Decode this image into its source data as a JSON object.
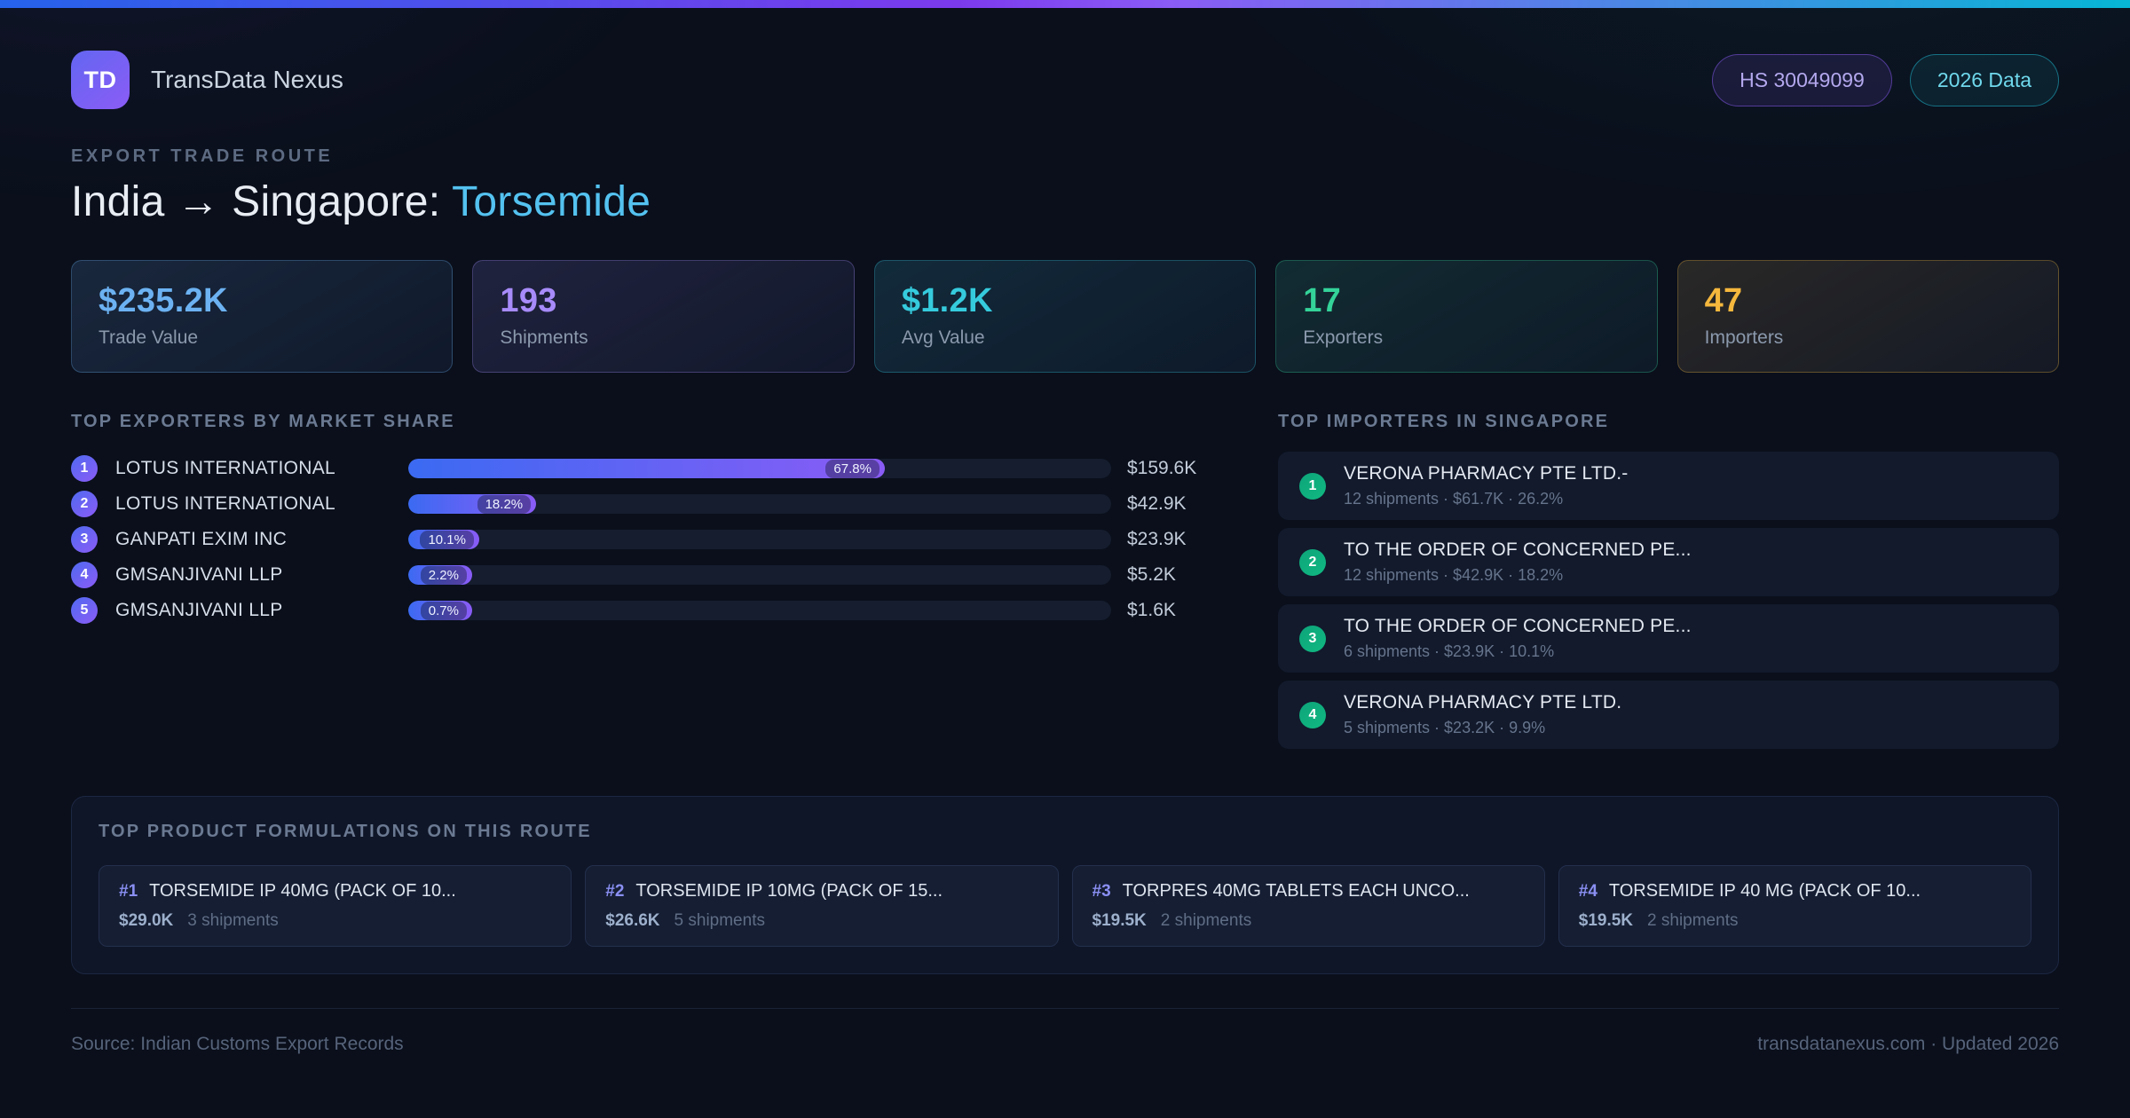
{
  "header": {
    "logo_text": "TD",
    "app_name": "TransData Nexus",
    "hs_badge": "HS 30049099",
    "year_badge": "2026 Data"
  },
  "hero": {
    "eyebrow": "EXPORT TRADE ROUTE",
    "title_route": "India → Singapore: ",
    "title_product": "Torsemide"
  },
  "stats": [
    {
      "value": "$235.2K",
      "label": "Trade Value",
      "color": "#6cb2f2"
    },
    {
      "value": "193",
      "label": "Shipments",
      "color": "#a78bfa"
    },
    {
      "value": "$1.2K",
      "label": "Avg Value",
      "color": "#35cbdd"
    },
    {
      "value": "17",
      "label": "Exporters",
      "color": "#34d399"
    },
    {
      "value": "47",
      "label": "Importers",
      "color": "#f5b83d"
    }
  ],
  "exporters": {
    "title": "TOP EXPORTERS BY MARKET SHARE",
    "rows": [
      {
        "rank": "1",
        "name": "LOTUS INTERNATIONAL",
        "share_label": "67.8%",
        "share_pct": 67.8,
        "value": "$159.6K"
      },
      {
        "rank": "2",
        "name": "LOTUS INTERNATIONAL",
        "share_label": "18.2%",
        "share_pct": 18.2,
        "value": "$42.9K"
      },
      {
        "rank": "3",
        "name": "GANPATI EXIM INC",
        "share_label": "10.1%",
        "share_pct": 10.1,
        "value": "$23.9K"
      },
      {
        "rank": "4",
        "name": "GMSANJIVANI LLP",
        "share_label": "2.2%",
        "share_pct": 2.2,
        "value": "$5.2K"
      },
      {
        "rank": "5",
        "name": "GMSANJIVANI LLP",
        "share_label": "0.7%",
        "share_pct": 0.7,
        "value": "$1.6K"
      }
    ]
  },
  "importers": {
    "title": "TOP IMPORTERS IN SINGAPORE",
    "rows": [
      {
        "rank": "1",
        "name": "VERONA PHARMACY PTE LTD.-",
        "meta": "12 shipments · $61.7K · 26.2%"
      },
      {
        "rank": "2",
        "name": "TO THE ORDER OF CONCERNED PE...",
        "meta": "12 shipments · $42.9K · 18.2%"
      },
      {
        "rank": "3",
        "name": "TO THE ORDER OF CONCERNED PE...",
        "meta": "6 shipments · $23.9K · 10.1%"
      },
      {
        "rank": "4",
        "name": "VERONA PHARMACY PTE LTD.",
        "meta": "5 shipments · $23.2K · 9.9%"
      }
    ]
  },
  "products": {
    "title": "TOP PRODUCT FORMULATIONS ON THIS ROUTE",
    "items": [
      {
        "rank": "#1",
        "name": "TORSEMIDE IP 40MG (PACK OF 10...",
        "value": "$29.0K",
        "shipments": "3 shipments"
      },
      {
        "rank": "#2",
        "name": "TORSEMIDE IP 10MG (PACK OF 15...",
        "value": "$26.6K",
        "shipments": "5 shipments"
      },
      {
        "rank": "#3",
        "name": "TORPRES 40MG TABLETS EACH UNCO...",
        "value": "$19.5K",
        "shipments": "2 shipments"
      },
      {
        "rank": "#4",
        "name": "TORSEMIDE IP 40 MG (PACK OF 10...",
        "value": "$19.5K",
        "shipments": "2 shipments"
      }
    ]
  },
  "footer": {
    "source": "Source: Indian Customs Export Records",
    "site": "transdatanexus.com · Updated 2026"
  }
}
